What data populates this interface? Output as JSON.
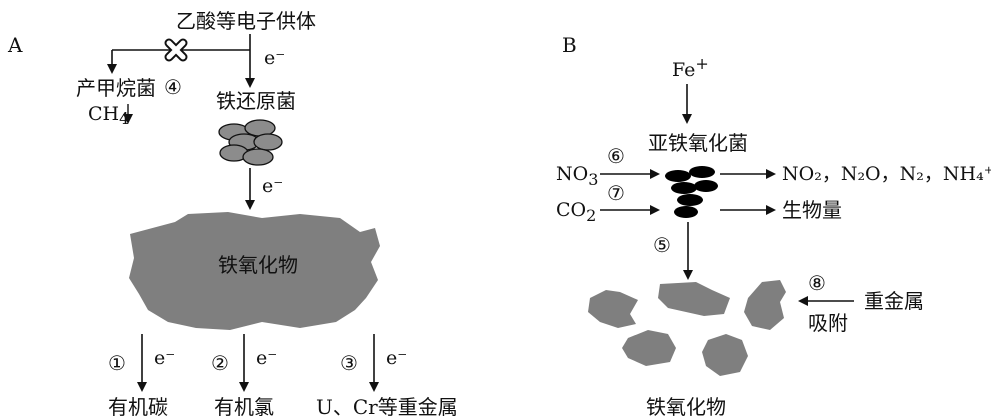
{
  "panel_a": {
    "label": "A",
    "donor": "乙酸等电子供体",
    "electron": "e⁻",
    "methanogen": "产甲烷菌",
    "step4": "④",
    "ch4": "CH",
    "ch4_sub": "4",
    "iron_reducer": "铁还原菌",
    "iron_oxide": "铁氧化物",
    "step1": "①",
    "step2": "②",
    "step3": "③",
    "product1": "有机碳",
    "product2": "有机氯",
    "product3": "U、Cr等重金属"
  },
  "panel_b": {
    "label": "B",
    "fe_input": "Fe",
    "fe_sup": "+",
    "oxidizer": "亚铁氧化菌",
    "no3": "NO",
    "no3_sub": "3",
    "step6": "⑥",
    "co2": "CO",
    "co2_sub": "2",
    "step7": "⑦",
    "products_n": "NO₂，N₂O，N₂，NH₄⁺",
    "biomass": "生物量",
    "step5": "⑤",
    "step8": "⑧",
    "heavy_metal": "重金属",
    "adsorb": "吸附",
    "iron_oxide": "铁氧化物"
  },
  "colors": {
    "oxide_fill": "#7f7f7f",
    "cell_fill": "#8c8c8c",
    "bacteria_b": "#000000",
    "line": "#111111"
  }
}
